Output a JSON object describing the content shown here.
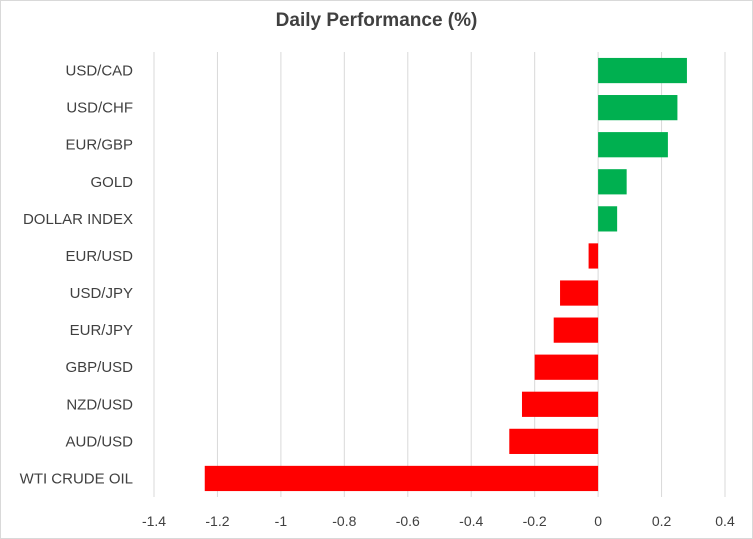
{
  "chart_data": {
    "type": "bar",
    "orientation": "horizontal",
    "title": "Daily Performance  (%)",
    "xlabel": "",
    "ylabel": "",
    "xlim": [
      -1.4,
      0.4
    ],
    "xticks": [
      "-1.4",
      "-1.2",
      "-1",
      "-0.8",
      "-0.6",
      "-0.4",
      "-0.2",
      "0",
      "0.2",
      "0.4"
    ],
    "xtick_values": [
      -1.4,
      -1.2,
      -1.0,
      -0.8,
      -0.6,
      -0.4,
      -0.2,
      0,
      0.2,
      0.4
    ],
    "grid": "vertical",
    "legend": "none",
    "categories": [
      "USD/CAD",
      "USD/CHF",
      "EUR/GBP",
      "GOLD",
      "DOLLAR INDEX",
      "EUR/USD",
      "USD/JPY",
      "EUR/JPY",
      "GBP/USD",
      "NZD/USD",
      "AUD/USD",
      "WTI CRUDE OIL"
    ],
    "values": [
      0.28,
      0.25,
      0.22,
      0.09,
      0.06,
      -0.03,
      -0.12,
      -0.14,
      -0.2,
      -0.24,
      -0.28,
      -1.24
    ],
    "colors": {
      "positive": "#00b050",
      "negative": "#ff0000"
    }
  }
}
